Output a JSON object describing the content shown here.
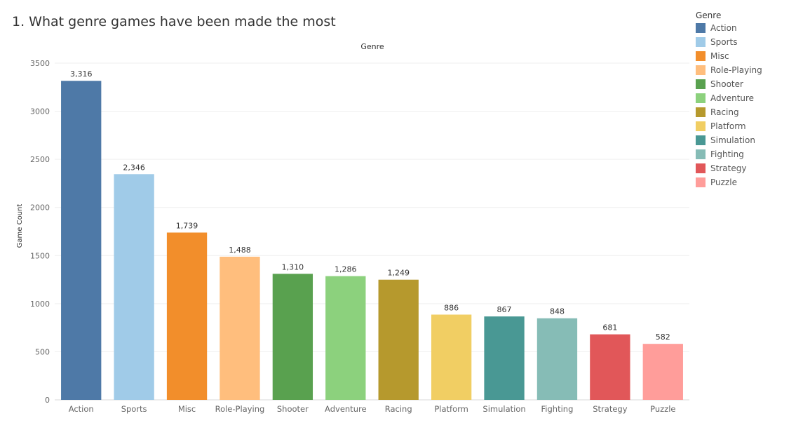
{
  "page": {
    "title": "1. What genre games have been made the most"
  },
  "legend": {
    "title": "Genre"
  },
  "chart_data": {
    "type": "bar",
    "title": "Genre",
    "xlabel": "",
    "ylabel": "Game Count",
    "ylim": [
      0,
      3500
    ],
    "yticks": [
      "0",
      "500",
      "1000",
      "1500",
      "2000",
      "2500",
      "3000",
      "3500"
    ],
    "categories": [
      "Action",
      "Sports",
      "Misc",
      "Role-Playing",
      "Shooter",
      "Adventure",
      "Racing",
      "Platform",
      "Simulation",
      "Fighting",
      "Strategy",
      "Puzzle"
    ],
    "values": [
      3316,
      2346,
      1739,
      1488,
      1310,
      1286,
      1249,
      886,
      867,
      848,
      681,
      582
    ],
    "value_labels": [
      "3,316",
      "2,346",
      "1,739",
      "1,488",
      "1,310",
      "1,286",
      "1,249",
      "886",
      "867",
      "848",
      "681",
      "582"
    ],
    "colors": [
      "#4e79a7",
      "#a0cbe8",
      "#f28e2b",
      "#ffbe7d",
      "#59a14f",
      "#8cd17d",
      "#b6992d",
      "#f1ce63",
      "#499894",
      "#86bcb6",
      "#e15759",
      "#ff9d9a"
    ],
    "grid": true,
    "legend_position": "right"
  }
}
